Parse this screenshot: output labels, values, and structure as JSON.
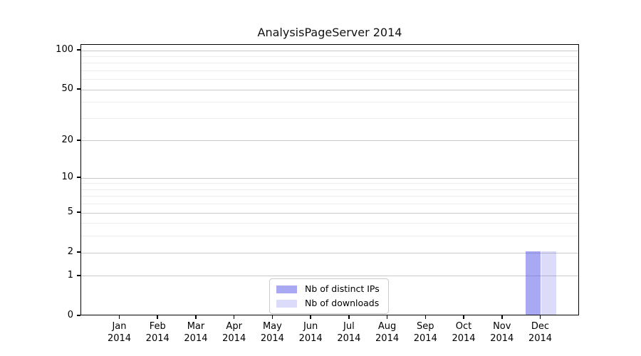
{
  "chart_data": {
    "type": "bar",
    "title": "AnalysisPageServer 2014",
    "categories": [
      "Jan",
      "Feb",
      "Mar",
      "Apr",
      "May",
      "Jun",
      "Jul",
      "Aug",
      "Sep",
      "Oct",
      "Nov",
      "Dec"
    ],
    "category_year": "2014",
    "series": [
      {
        "name": "Nb of distinct IPs",
        "color": "rgba(80,80,230,0.49)",
        "values": [
          0,
          0,
          0,
          0,
          0,
          0,
          0,
          0,
          0,
          0,
          0,
          2
        ]
      },
      {
        "name": "Nb of downloads",
        "color": "rgba(80,80,230,0.20)",
        "values": [
          0,
          0,
          0,
          0,
          0,
          0,
          0,
          0,
          0,
          0,
          0,
          2
        ]
      }
    ],
    "y_axis": {
      "scale": "log1p",
      "ticks": [
        0,
        1,
        2,
        5,
        10,
        20,
        50,
        100
      ],
      "minor_gridlines": [
        3,
        4,
        6,
        7,
        8,
        9,
        30,
        40,
        60,
        70,
        80,
        90
      ],
      "max": 100
    },
    "grid": {
      "major_color": "#c8c8c8",
      "minor_color": "#ececec"
    },
    "legend_position": "bottom-center-inside"
  }
}
